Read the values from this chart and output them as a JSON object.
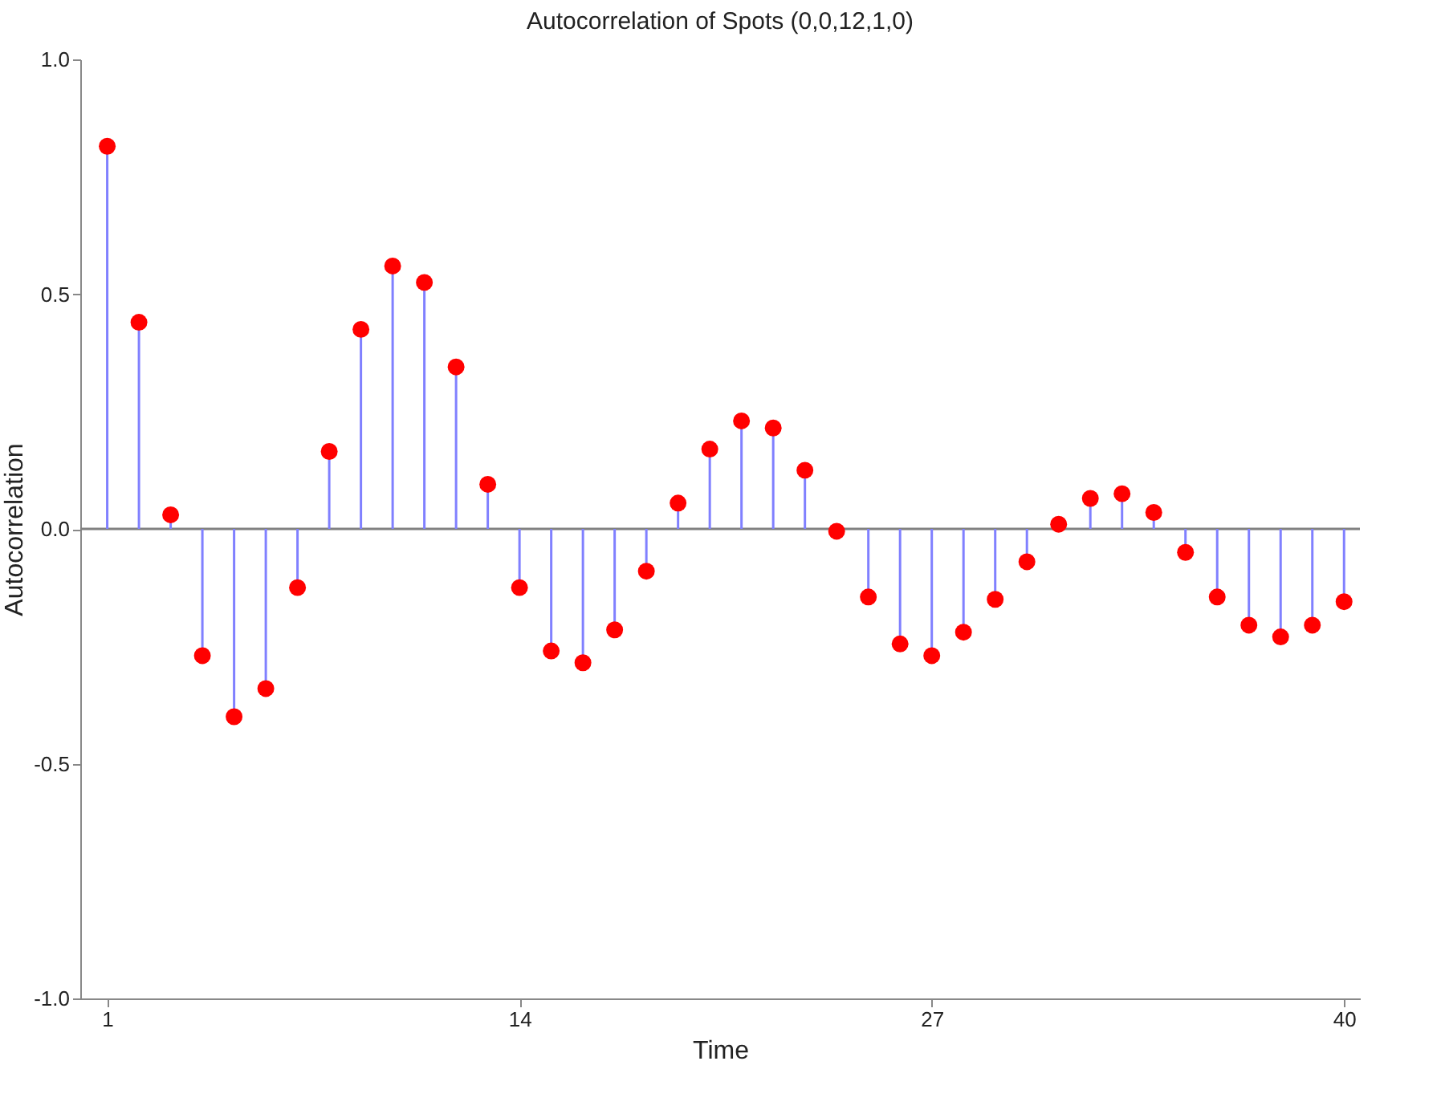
{
  "chart_data": {
    "type": "lollipop",
    "title": "Autocorrelation of Spots (0,0,12,1,0)",
    "xlabel": "Time",
    "ylabel": "Autocorrelation",
    "x": [
      1,
      2,
      3,
      4,
      5,
      6,
      7,
      8,
      9,
      10,
      11,
      12,
      13,
      14,
      15,
      16,
      17,
      18,
      19,
      20,
      21,
      22,
      23,
      24,
      25,
      26,
      27,
      28,
      29,
      30,
      31,
      32,
      33,
      34,
      35,
      36,
      37,
      38,
      39,
      40
    ],
    "series": [
      {
        "color": "#ff0000",
        "values": [
          0.815,
          0.44,
          0.03,
          -0.27,
          -0.4,
          -0.34,
          -0.125,
          0.165,
          0.425,
          0.56,
          0.525,
          0.345,
          0.095,
          -0.125,
          -0.26,
          -0.285,
          -0.215,
          -0.09,
          0.055,
          0.17,
          0.23,
          0.215,
          0.125,
          -0.005,
          -0.145,
          -0.245,
          -0.27,
          -0.22,
          -0.15,
          -0.07,
          0.01,
          0.065,
          0.075,
          0.035,
          -0.05,
          -0.145,
          -0.205,
          -0.23,
          -0.205,
          -0.155
        ]
      }
    ],
    "xlim": [
      0.15,
      40.5
    ],
    "xticks": [
      1,
      14,
      27,
      40
    ],
    "ylim": [
      -1,
      1
    ],
    "yticks": [
      {
        "value": -1,
        "label": "-1.0"
      },
      {
        "value": -0.5,
        "label": "-0.5"
      },
      {
        "value": 0,
        "label": "0.0"
      },
      {
        "value": 0.5,
        "label": "0.5"
      },
      {
        "value": 1,
        "label": "1.0"
      }
    ],
    "ref_lines": [
      {
        "axis": "y",
        "value": 0,
        "color": "#808080"
      }
    ],
    "marker": "circle"
  }
}
